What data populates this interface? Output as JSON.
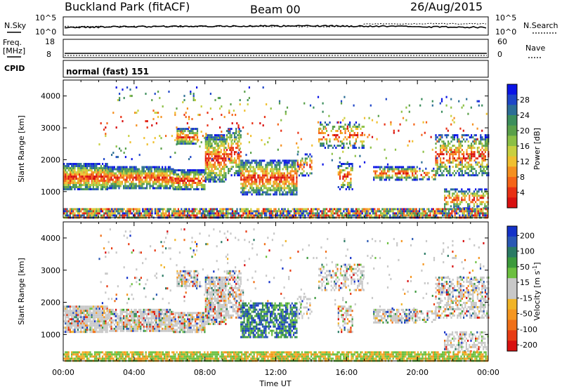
{
  "header": {
    "site": "Buckland Park (fitACF)",
    "beam": "Beam 00",
    "date": "26/Aug/2015"
  },
  "status_panels": {
    "nsky_label": "N.Sky",
    "nsearch_label": "N.Search",
    "nsky_ticks": [
      "10^5",
      "10^0"
    ],
    "nsearch_ticks": [
      "10^5",
      "10^0"
    ],
    "freq_label_line1": "Freq.",
    "freq_label_line2": "[MHz]",
    "freq_ticks": [
      "18",
      "8"
    ],
    "nave_label": "Nave",
    "nave_ticks": [
      "60",
      "0"
    ],
    "cpid_label": "CPID",
    "cpid_text": "normal (fast) 151"
  },
  "chart_data": [
    {
      "type": "heatmap",
      "name": "power",
      "ylabel": "Slant Range [km]",
      "xlabel": "Time UT",
      "x_range": [
        "00:00",
        "24:00"
      ],
      "y_ticks": [
        1000,
        2000,
        3000,
        4000
      ],
      "ylim": [
        180,
        4500
      ],
      "x_tick_labels": [
        "00:00",
        "04:00",
        "08:00",
        "12:00",
        "16:00",
        "20:00",
        "00:00"
      ],
      "colorbar": {
        "label": "Power [dB]",
        "ticks": [
          "4",
          "8",
          "12",
          "16",
          "20",
          "24",
          "28"
        ],
        "colors": [
          "#0a14e6",
          "#1e46c8",
          "#2c6e96",
          "#3c8e5c",
          "#5aa04a",
          "#8cc046",
          "#c8d040",
          "#f0c030",
          "#f59020",
          "#f56418",
          "#e83014",
          "#d81010"
        ]
      }
    },
    {
      "type": "heatmap",
      "name": "velocity",
      "ylabel": "Slant Range [km]",
      "xlabel": "Time UT",
      "x_range": [
        "00:00",
        "24:00"
      ],
      "y_ticks": [
        1000,
        2000,
        3000,
        4000
      ],
      "ylim": [
        180,
        4500
      ],
      "x_tick_labels": [
        "00:00",
        "04:00",
        "08:00",
        "12:00",
        "16:00",
        "20:00",
        "00:00"
      ],
      "colorbar": {
        "label_main": "Velocity [m s",
        "label_sup": "-1",
        "label_end": "]",
        "ticks": [
          "200",
          "100",
          "50",
          "15",
          "-15",
          "-50",
          "-100",
          "-200"
        ],
        "colors": [
          "#1432c8",
          "#2a58b4",
          "#2a7a64",
          "#3c9a3c",
          "#6cc040",
          "#c8c8c8",
          "#c8c8c8",
          "#f0b428",
          "#f59620",
          "#f07018",
          "#e83c14",
          "#d81010"
        ]
      }
    }
  ]
}
